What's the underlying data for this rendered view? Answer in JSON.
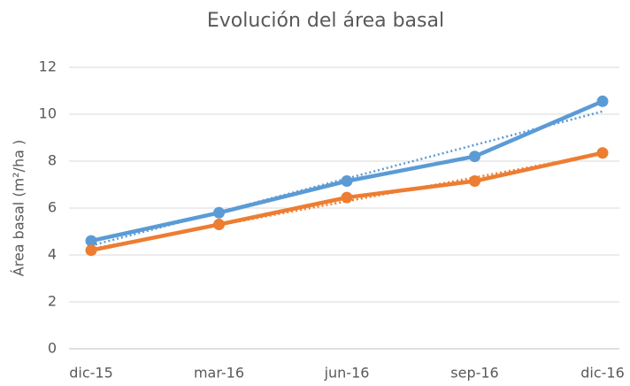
{
  "chart_data": {
    "type": "line",
    "title": "Evolución del área basal",
    "y_label": "Área basal (m²/ha )",
    "categories": [
      "dic-15",
      "mar-16",
      "jun-16",
      "sep-16",
      "dic-16"
    ],
    "series": [
      {
        "color": "#5b9bd5",
        "values": [
          4.6,
          5.8,
          7.15,
          8.2,
          10.55
        ]
      },
      {
        "color": "#ed7d31",
        "values": [
          4.2,
          5.3,
          6.45,
          7.15,
          8.35
        ]
      }
    ],
    "trendline": "linear",
    "ylim": [
      0,
      12
    ],
    "yticks": [
      0,
      2,
      4,
      6,
      8,
      10,
      12
    ],
    "grid": true
  }
}
